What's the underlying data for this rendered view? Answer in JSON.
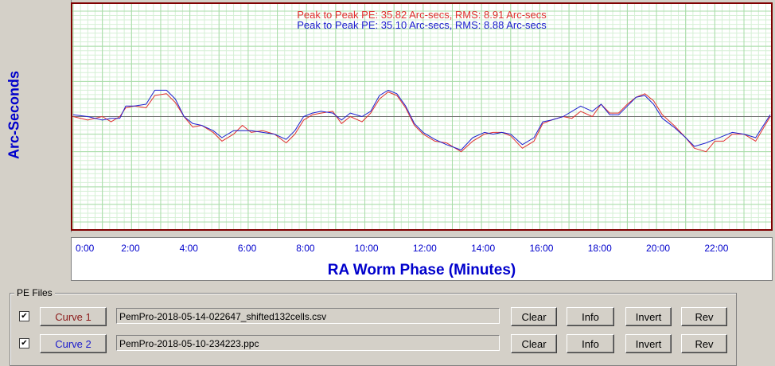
{
  "chart_data": {
    "type": "line",
    "ylabel": "Arc-Seconds",
    "xlabel": "RA Worm Phase (Minutes)",
    "ylim": [
      -60,
      60
    ],
    "xlim": [
      0,
      23.9
    ],
    "yticks": [
      "60.0",
      "50.0",
      "40.0",
      "30.0",
      "20.0",
      "10.0",
      "0.0",
      "-10.0",
      "-20.0",
      "-30.0",
      "-40.0",
      "-50.0",
      "-60.0"
    ],
    "xticks": [
      "0:00",
      "2:00",
      "4:00",
      "6:00",
      "8:00",
      "10:00",
      "12:00",
      "14:00",
      "16:00",
      "18:00",
      "20:00",
      "22:00"
    ],
    "grid": true,
    "series": [
      {
        "name": "Curve 1",
        "color": "#e03030",
        "stats": "Peak to Peak PE: 35.82 Arc-secs,  RMS: 8.91 Arc-secs",
        "x": [
          0,
          0.5,
          1,
          1.3,
          1.6,
          1.8,
          2.1,
          2.5,
          2.8,
          3.2,
          3.5,
          3.8,
          4.1,
          4.4,
          4.8,
          5.1,
          5.5,
          5.8,
          6.1,
          6.5,
          6.9,
          7.3,
          7.6,
          7.9,
          8.2,
          8.5,
          8.9,
          9.2,
          9.5,
          9.9,
          10.2,
          10.5,
          10.8,
          11.1,
          11.4,
          11.7,
          12,
          12.4,
          12.8,
          13.3,
          13.7,
          14.1,
          14.4,
          14.7,
          15,
          15.4,
          15.8,
          16.1,
          16.4,
          16.8,
          17.1,
          17.4,
          17.8,
          18.1,
          18.4,
          18.7,
          19,
          19.3,
          19.6,
          19.9,
          20.2,
          20.6,
          21,
          21.3,
          21.7,
          22,
          22.3,
          22.6,
          23,
          23.4,
          23.9
        ],
        "y": [
          0,
          -2,
          0,
          -3,
          0,
          5,
          6,
          5,
          12,
          13,
          8,
          0,
          -6,
          -5,
          -9,
          -14,
          -10,
          -5,
          -9,
          -8,
          -10,
          -15,
          -10,
          -2,
          1,
          2,
          3,
          -4,
          0,
          -3,
          2,
          10,
          14,
          12,
          5,
          -5,
          -10,
          -14,
          -15,
          -20,
          -14,
          -10,
          -9,
          -9,
          -11,
          -18,
          -14,
          -4,
          -2,
          0,
          -1,
          3,
          0,
          7,
          2,
          2,
          7,
          11,
          13,
          9,
          1,
          -5,
          -12,
          -18,
          -20,
          -14,
          -14,
          -10,
          -10,
          -14,
          0
        ]
      },
      {
        "name": "Curve 2",
        "color": "#2020d0",
        "stats": "Peak to Peak PE: 35.10 Arc-secs,  RMS: 8.88 Arc-secs",
        "x": [
          0,
          0.5,
          1,
          1.3,
          1.6,
          1.8,
          2.1,
          2.5,
          2.8,
          3.2,
          3.5,
          3.8,
          4.1,
          4.4,
          4.8,
          5.1,
          5.5,
          5.8,
          6.1,
          6.5,
          6.9,
          7.3,
          7.6,
          7.9,
          8.2,
          8.5,
          8.9,
          9.2,
          9.5,
          9.9,
          10.2,
          10.5,
          10.8,
          11.1,
          11.4,
          11.7,
          12,
          12.4,
          12.8,
          13.3,
          13.7,
          14.1,
          14.4,
          14.7,
          15,
          15.4,
          15.8,
          16.1,
          16.4,
          16.8,
          17.1,
          17.4,
          17.8,
          18.1,
          18.4,
          18.7,
          19,
          19.3,
          19.6,
          19.9,
          20.2,
          20.6,
          21,
          21.3,
          21.7,
          22,
          22.3,
          22.6,
          23,
          23.4,
          23.9
        ],
        "y": [
          1,
          0,
          -2,
          -1,
          -1,
          6,
          6,
          7,
          15,
          15,
          10,
          0,
          -4,
          -5,
          -8,
          -12,
          -8,
          -8,
          -8,
          -9,
          -10,
          -13,
          -8,
          0,
          2,
          3,
          2,
          -2,
          2,
          0,
          3,
          12,
          15,
          13,
          6,
          -4,
          -9,
          -13,
          -16,
          -19,
          -12,
          -9,
          -10,
          -9,
          -10,
          -16,
          -12,
          -3,
          -2,
          0,
          3,
          6,
          3,
          7,
          1,
          1,
          6,
          11,
          12,
          7,
          -1,
          -6,
          -12,
          -17,
          -15,
          -13,
          -11,
          -9,
          -10,
          -12,
          1
        ]
      }
    ]
  },
  "pe_files": {
    "group_title": "PE Files",
    "rows": [
      {
        "checked": "✔",
        "curve_label": "Curve 1",
        "curve_color": "#8b1a1a",
        "filename": "PemPro-2018-05-14-022647_shifted132cells.csv",
        "clear": "Clear",
        "info": "Info",
        "invert": "Invert",
        "rev": "Rev"
      },
      {
        "checked": "✔",
        "curve_label": "Curve 2",
        "curve_color": "#1a1acc",
        "filename": "PemPro-2018-05-10-234223.ppc",
        "clear": "Clear",
        "info": "Info",
        "invert": "Invert",
        "rev": "Rev"
      }
    ]
  }
}
